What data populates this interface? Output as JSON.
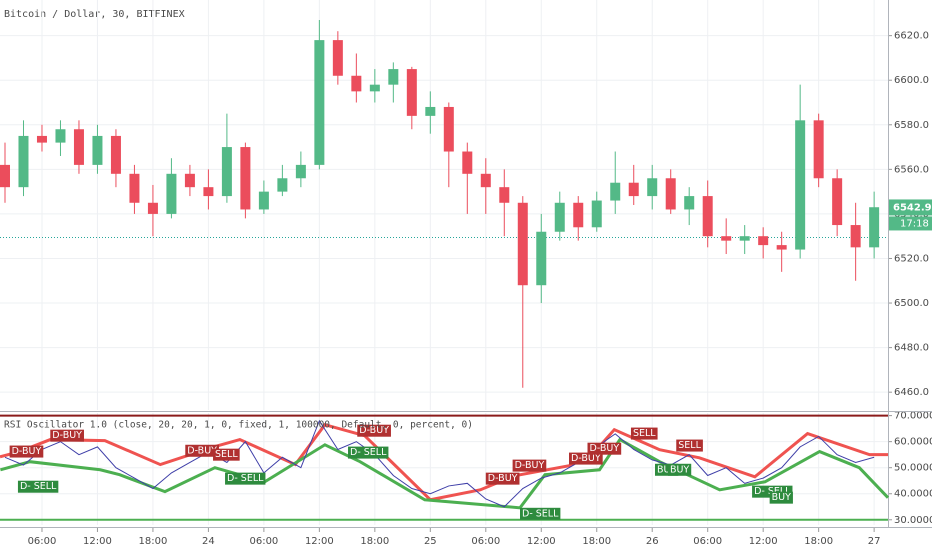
{
  "chart_data": [
    {
      "type": "candlestick",
      "title": "Bitcoin / Dollar, 30, BITFINEX",
      "x": [
        2,
        4,
        6,
        8,
        10,
        12,
        14,
        16,
        18,
        20,
        22,
        24,
        26,
        28,
        30,
        32,
        34,
        36,
        38,
        40,
        42,
        44,
        46,
        48,
        50,
        52,
        54,
        56,
        58,
        60,
        62,
        64,
        66,
        68,
        70,
        72,
        74,
        76,
        78,
        80,
        82,
        84,
        86,
        88,
        90,
        92,
        94,
        96
      ],
      "open": [
        6562,
        6552,
        6575,
        6572,
        6578,
        6562,
        6575,
        6558,
        6545,
        6540,
        6558,
        6552,
        6548,
        6570,
        6542,
        6550,
        6556,
        6562,
        6618,
        6602,
        6595,
        6598,
        6605,
        6584,
        6588,
        6568,
        6558,
        6552,
        6545,
        6508,
        6532,
        6545,
        6534,
        6546,
        6554,
        6548,
        6556,
        6542,
        6548,
        6530,
        6528,
        6530,
        6526,
        6524,
        6582,
        6556,
        6535,
        6525
      ],
      "high": [
        6572,
        6582,
        6580,
        6582,
        6582,
        6580,
        6578,
        6562,
        6553,
        6565,
        6562,
        6560,
        6585,
        6572,
        6555,
        6562,
        6568,
        6627,
        6622,
        6612,
        6605,
        6608,
        6606,
        6595,
        6590,
        6572,
        6565,
        6560,
        6548,
        6540,
        6550,
        6548,
        6550,
        6568,
        6562,
        6562,
        6560,
        6552,
        6555,
        6538,
        6535,
        6534,
        6532,
        6598,
        6585,
        6560,
        6545,
        6550
      ],
      "low": [
        6545,
        6548,
        6568,
        6566,
        6558,
        6558,
        6552,
        6540,
        6530,
        6538,
        6548,
        6542,
        6545,
        6538,
        6540,
        6548,
        6552,
        6560,
        6598,
        6590,
        6590,
        6590,
        6578,
        6576,
        6552,
        6540,
        6540,
        6530,
        6462,
        6500,
        6528,
        6528,
        6532,
        6540,
        6544,
        6542,
        6540,
        6535,
        6525,
        6522,
        6522,
        6520,
        6514,
        6520,
        6552,
        6530,
        6510,
        6520
      ],
      "close": [
        6552,
        6575,
        6572,
        6578,
        6562,
        6575,
        6558,
        6545,
        6540,
        6558,
        6552,
        6548,
        6570,
        6542,
        6550,
        6556,
        6562,
        6618,
        6602,
        6595,
        6598,
        6605,
        6584,
        6588,
        6568,
        6558,
        6552,
        6545,
        6508,
        6532,
        6545,
        6534,
        6546,
        6554,
        6548,
        6556,
        6542,
        6548,
        6530,
        6528,
        6530,
        6526,
        6524,
        6582,
        6556,
        6535,
        6525,
        6543
      ],
      "up_color": "#53b987",
      "down_color": "#eb4d5c",
      "xlim": [
        1.46,
        97.5
      ],
      "ylim": [
        6452,
        6636
      ],
      "yticks": [
        {
          "value": 6460,
          "label": "6460.0"
        },
        {
          "value": 6480,
          "label": "6480.0"
        },
        {
          "value": 6500,
          "label": "6500.0"
        },
        {
          "value": 6520,
          "label": "6520.0"
        },
        {
          "value": 6540,
          "label": "6540.0"
        },
        {
          "value": 6560,
          "label": "6560.0"
        },
        {
          "value": 6580,
          "label": "6580.0"
        },
        {
          "value": 6600,
          "label": "6600.0"
        },
        {
          "value": 6620,
          "label": "6620.0"
        }
      ],
      "grid": true,
      "hline": 6529.4,
      "last_price": 6542.9,
      "countdown": "17:18"
    },
    {
      "type": "line",
      "title": "RSI Oscillator 1.0  (close, 20, 20, 1, 0, fixed, 1, 100000, Default, 0, percent, 0)",
      "series": [
        {
          "color": "#ef5350",
          "width": 3,
          "x": [
            1.46,
            3.6,
            6.9,
            12.8,
            18.8,
            24.7,
            27.4,
            33.4,
            36.6,
            40.9,
            48,
            53.4,
            57.1,
            63.1,
            65.8,
            67.9,
            72.8,
            77.1,
            83.1,
            88.8,
            95.5,
            97.5
          ],
          "values": [
            54.2,
            56.2,
            60.8,
            60.4,
            51.2,
            58.1,
            60.8,
            51.2,
            66.5,
            62.3,
            37.7,
            41.5,
            46.9,
            50.8,
            56.2,
            64.6,
            56.9,
            53.8,
            46.5,
            63.1,
            55,
            55
          ]
        },
        {
          "color": "#4caf50",
          "width": 3,
          "x": [
            1.5,
            4.7,
            12.3,
            14.4,
            19.3,
            24.7,
            30.1,
            36.6,
            40.4,
            47.4,
            57.7,
            60.4,
            66.3,
            68.5,
            72.8,
            79.3,
            84.2,
            90.1,
            94.4,
            97.5
          ],
          "values": [
            49.2,
            52.3,
            49.2,
            47.3,
            40.8,
            50,
            44.6,
            58.8,
            52.3,
            37.7,
            34.6,
            47.3,
            49.2,
            60.8,
            52.3,
            41.5,
            44.6,
            56.2,
            50,
            38.5
          ]
        },
        {
          "color": "#3f3fa8",
          "width": 1,
          "x": [
            2,
            4,
            6,
            8,
            10,
            12,
            14,
            16,
            18,
            20,
            22,
            24,
            26,
            28,
            30,
            32,
            34,
            36,
            38,
            40,
            42,
            44,
            46,
            48,
            50,
            52,
            54,
            56,
            58,
            60,
            62,
            64,
            66,
            68,
            70,
            72,
            74,
            76,
            78,
            80,
            82,
            84,
            86,
            88,
            90,
            92,
            94,
            96
          ],
          "values": [
            54,
            51,
            57,
            60,
            55,
            58,
            50,
            46,
            42,
            48,
            52,
            56,
            52,
            60,
            48,
            54,
            50,
            68,
            57,
            60,
            55,
            47,
            42,
            40,
            43,
            44,
            38,
            35,
            42,
            46,
            48,
            52,
            58,
            63,
            57,
            53,
            51,
            55,
            47,
            50,
            44,
            46,
            50,
            58,
            62,
            55,
            52,
            54
          ]
        }
      ],
      "levels": [
        {
          "value": 70,
          "color": "#8b1a1a"
        },
        {
          "value": 30,
          "color": "#4caf50"
        }
      ],
      "annotations": [
        {
          "text": "D-BUY",
          "x": 2.5,
          "y": 56.2,
          "color": "#b03030"
        },
        {
          "text": "D-BUY",
          "x": 6.9,
          "y": 62.3,
          "color": "#b03030"
        },
        {
          "text": "D-BUY",
          "x": 21.5,
          "y": 56.5,
          "color": "#b03030"
        },
        {
          "text": "SELL",
          "x": 24.5,
          "y": 55,
          "color": "#b03030"
        },
        {
          "text": "D- SELL",
          "x": 3.4,
          "y": 42.7,
          "color": "#2e8b3e"
        },
        {
          "text": "D- SELL",
          "x": 25.8,
          "y": 45.8,
          "color": "#2e8b3e"
        },
        {
          "text": "D- SELL",
          "x": 39.1,
          "y": 55.8,
          "color": "#2e8b3e"
        },
        {
          "text": "D-BUY",
          "x": 40.1,
          "y": 64.2,
          "color": "#b03030"
        },
        {
          "text": "D-BUY",
          "x": 54,
          "y": 45.8,
          "color": "#b03030"
        },
        {
          "text": "D-BUY",
          "x": 56.9,
          "y": 50.8,
          "color": "#b03030"
        },
        {
          "text": "D- SELL",
          "x": 57.7,
          "y": 32.3,
          "color": "#2e8b3e"
        },
        {
          "text": "D-BUY",
          "x": 63,
          "y": 53.5,
          "color": "#b03030"
        },
        {
          "text": "D-BUY",
          "x": 65,
          "y": 57.3,
          "color": "#b03030"
        },
        {
          "text": "SELL",
          "x": 69.7,
          "y": 63.1,
          "color": "#b03030"
        },
        {
          "text": "BUY",
          "x": 72.3,
          "y": 49.2,
          "color": "#2e8b3e"
        },
        {
          "text": "BUY",
          "x": 73.7,
          "y": 49.2,
          "color": "#2e8b3e"
        },
        {
          "text": "SELL",
          "x": 74.6,
          "y": 58.5,
          "color": "#b03030"
        },
        {
          "text": "D- SELL",
          "x": 82.8,
          "y": 40.8,
          "color": "#2e8b3e"
        },
        {
          "text": "BUY",
          "x": 84.7,
          "y": 38.5,
          "color": "#2e8b3e"
        }
      ],
      "xlim": [
        1.46,
        97.5
      ],
      "ylim": [
        28,
        71
      ],
      "yticks": [
        {
          "value": 30,
          "label": "30.0000"
        },
        {
          "value": 40,
          "label": "40.0000"
        },
        {
          "value": 50,
          "label": "50.0000"
        },
        {
          "value": 60,
          "label": "60.0000"
        },
        {
          "value": 70,
          "label": "70.0000"
        }
      ],
      "xticks": [
        {
          "value": 6,
          "label": "06:00"
        },
        {
          "value": 12,
          "label": "12:00"
        },
        {
          "value": 18,
          "label": "18:00"
        },
        {
          "value": 24,
          "label": "24"
        },
        {
          "value": 30,
          "label": "06:00"
        },
        {
          "value": 36,
          "label": "12:00"
        },
        {
          "value": 42,
          "label": "18:00"
        },
        {
          "value": 48,
          "label": "25"
        },
        {
          "value": 54,
          "label": "06:00"
        },
        {
          "value": 60,
          "label": "12:00"
        },
        {
          "value": 66,
          "label": "18:00"
        },
        {
          "value": 72,
          "label": "26"
        },
        {
          "value": 78,
          "label": "06:00"
        },
        {
          "value": 84,
          "label": "12:00"
        },
        {
          "value": 90,
          "label": "18:00"
        },
        {
          "value": 96,
          "label": "27"
        }
      ],
      "grid": true
    }
  ]
}
